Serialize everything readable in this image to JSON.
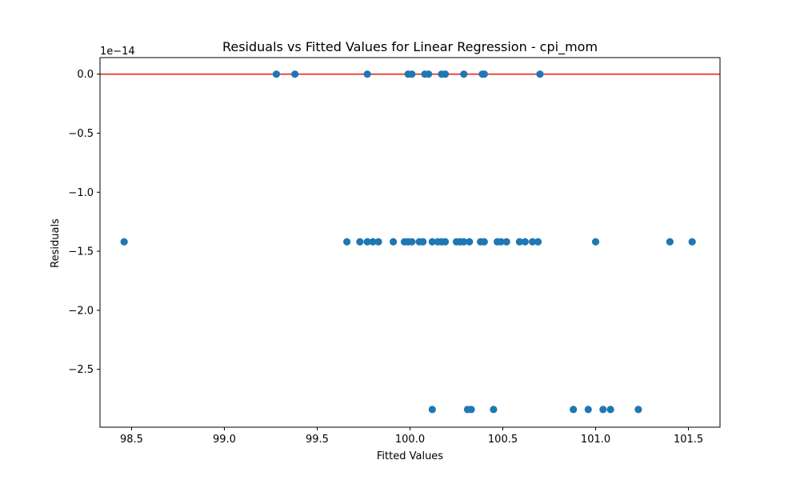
{
  "chart_data": {
    "type": "scatter",
    "title": "Residuals vs Fitted Values for Linear Regression - cpi_mom",
    "xlabel": "Fitted Values",
    "ylabel": "Residuals",
    "y_offset_label": "1e−14",
    "xlim": [
      98.33,
      101.67
    ],
    "ylim": [
      -2.99,
      0.14
    ],
    "x_ticks": [
      98.5,
      99.0,
      99.5,
      100.0,
      100.5,
      101.0,
      101.5
    ],
    "x_tick_labels": [
      "98.5",
      "99.0",
      "99.5",
      "100.0",
      "100.5",
      "101.0",
      "101.5"
    ],
    "y_ticks": [
      0.0,
      -0.5,
      -1.0,
      -1.5,
      -2.0,
      -2.5
    ],
    "y_tick_labels": [
      "0.0",
      "−0.5",
      "−1.0",
      "−1.5",
      "−2.0",
      "−2.5"
    ],
    "grid": false,
    "reference_line": {
      "y": 0.0,
      "color": "#e8251d"
    },
    "point_color": "#1f77b4",
    "points": [
      {
        "x": 99.28,
        "y": 0.0
      },
      {
        "x": 99.38,
        "y": 0.0
      },
      {
        "x": 99.77,
        "y": 0.0
      },
      {
        "x": 99.99,
        "y": 0.0
      },
      {
        "x": 100.01,
        "y": 0.0
      },
      {
        "x": 100.08,
        "y": 0.0
      },
      {
        "x": 100.1,
        "y": 0.0
      },
      {
        "x": 100.17,
        "y": 0.0
      },
      {
        "x": 100.19,
        "y": 0.0
      },
      {
        "x": 100.29,
        "y": 0.0
      },
      {
        "x": 100.39,
        "y": 0.0
      },
      {
        "x": 100.4,
        "y": 0.0
      },
      {
        "x": 100.7,
        "y": 0.0
      },
      {
        "x": 98.46,
        "y": -1.42
      },
      {
        "x": 99.66,
        "y": -1.42
      },
      {
        "x": 99.73,
        "y": -1.42
      },
      {
        "x": 99.77,
        "y": -1.42
      },
      {
        "x": 99.8,
        "y": -1.42
      },
      {
        "x": 99.83,
        "y": -1.42
      },
      {
        "x": 99.91,
        "y": -1.42
      },
      {
        "x": 99.97,
        "y": -1.42
      },
      {
        "x": 99.99,
        "y": -1.42
      },
      {
        "x": 100.01,
        "y": -1.42
      },
      {
        "x": 100.05,
        "y": -1.42
      },
      {
        "x": 100.07,
        "y": -1.42
      },
      {
        "x": 100.12,
        "y": -1.42
      },
      {
        "x": 100.15,
        "y": -1.42
      },
      {
        "x": 100.17,
        "y": -1.42
      },
      {
        "x": 100.19,
        "y": -1.42
      },
      {
        "x": 100.25,
        "y": -1.42
      },
      {
        "x": 100.27,
        "y": -1.42
      },
      {
        "x": 100.29,
        "y": -1.42
      },
      {
        "x": 100.32,
        "y": -1.42
      },
      {
        "x": 100.38,
        "y": -1.42
      },
      {
        "x": 100.4,
        "y": -1.42
      },
      {
        "x": 100.47,
        "y": -1.42
      },
      {
        "x": 100.49,
        "y": -1.42
      },
      {
        "x": 100.52,
        "y": -1.42
      },
      {
        "x": 100.59,
        "y": -1.42
      },
      {
        "x": 100.62,
        "y": -1.42
      },
      {
        "x": 100.66,
        "y": -1.42
      },
      {
        "x": 100.69,
        "y": -1.42
      },
      {
        "x": 101.0,
        "y": -1.42
      },
      {
        "x": 101.4,
        "y": -1.42
      },
      {
        "x": 101.52,
        "y": -1.42
      },
      {
        "x": 100.12,
        "y": -2.84
      },
      {
        "x": 100.31,
        "y": -2.84
      },
      {
        "x": 100.33,
        "y": -2.84
      },
      {
        "x": 100.45,
        "y": -2.84
      },
      {
        "x": 100.88,
        "y": -2.84
      },
      {
        "x": 100.96,
        "y": -2.84
      },
      {
        "x": 101.04,
        "y": -2.84
      },
      {
        "x": 101.08,
        "y": -2.84
      },
      {
        "x": 101.23,
        "y": -2.84
      }
    ]
  }
}
